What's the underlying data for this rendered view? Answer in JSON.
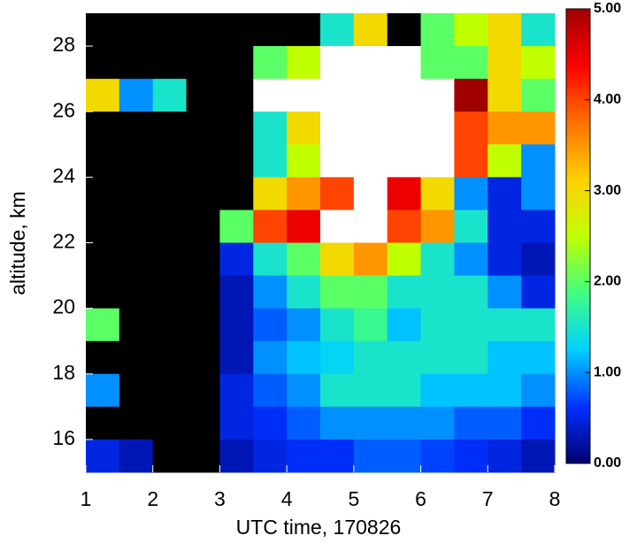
{
  "chart_data": {
    "type": "heatmap",
    "x_label": "UTC time, 170826",
    "y_label": "altitude, km",
    "xlim": [
      1,
      8
    ],
    "ylim": [
      15,
      29
    ],
    "xticks": [
      1,
      2,
      3,
      4,
      5,
      6,
      7,
      8
    ],
    "yticks": [
      16,
      18,
      20,
      22,
      24,
      26,
      28
    ],
    "x": [
      1.25,
      1.75,
      2.25,
      2.75,
      3.25,
      3.75,
      4.25,
      4.75,
      5.25,
      5.75,
      6.25,
      6.75,
      7.25,
      7.75
    ],
    "y": [
      28.5,
      27.5,
      26.5,
      25.5,
      24.5,
      23.5,
      22.5,
      21.5,
      20.5,
      19.5,
      18.5,
      17.5,
      16.5,
      15.5
    ],
    "z": [
      [
        null,
        null,
        null,
        null,
        null,
        null,
        null,
        1.5,
        3,
        null,
        2,
        2.5,
        3,
        1.5
      ],
      [
        null,
        null,
        null,
        null,
        null,
        2,
        2.5,
        6,
        6,
        6,
        2,
        2,
        3,
        2.5
      ],
      [
        3,
        1,
        1.5,
        null,
        null,
        6,
        6,
        6,
        6,
        6,
        6,
        5,
        3,
        2
      ],
      [
        null,
        null,
        null,
        null,
        null,
        1.5,
        3,
        6,
        6,
        6,
        6,
        4,
        3.5,
        3.5
      ],
      [
        null,
        null,
        null,
        null,
        null,
        1.5,
        2.5,
        6,
        6,
        6,
        6,
        4,
        2.5,
        1
      ],
      [
        null,
        null,
        null,
        null,
        null,
        3,
        3.5,
        4,
        6,
        4.5,
        3,
        1,
        0.5,
        1
      ],
      [
        null,
        null,
        null,
        null,
        2,
        4,
        4.5,
        6,
        6,
        4,
        3.5,
        1.5,
        0.5,
        0.5
      ],
      [
        null,
        null,
        null,
        null,
        0.5,
        1.5,
        2,
        3,
        3.5,
        2.5,
        1.5,
        1,
        0.5,
        0.3
      ],
      [
        null,
        null,
        null,
        null,
        0.3,
        1,
        1.5,
        2,
        2,
        1.5,
        1.5,
        1.5,
        1,
        0.5
      ],
      [
        2,
        null,
        null,
        null,
        0.3,
        0.8,
        1,
        1.5,
        1.8,
        1.2,
        1.5,
        1.5,
        1.5,
        1.5
      ],
      [
        null,
        null,
        null,
        null,
        0.3,
        1,
        1.2,
        1.3,
        1.5,
        1.5,
        1.5,
        1.5,
        1.2,
        1.2
      ],
      [
        1,
        null,
        null,
        null,
        0.5,
        0.8,
        1,
        1.5,
        1.5,
        1.5,
        1.2,
        1.2,
        1.2,
        1
      ],
      [
        null,
        null,
        null,
        null,
        0.5,
        0.6,
        0.8,
        1,
        1,
        1,
        1,
        0.8,
        0.8,
        0.6
      ],
      [
        0.5,
        0.3,
        null,
        null,
        0.3,
        0.5,
        0.6,
        0.6,
        0.8,
        0.8,
        0.7,
        0.6,
        0.5,
        0.3
      ]
    ],
    "clim": [
      0,
      5
    ],
    "cticks": [
      {
        "value": 0,
        "label": "0.00"
      },
      {
        "value": 1,
        "label": "1.00"
      },
      {
        "value": 2,
        "label": "2.00"
      },
      {
        "value": 3,
        "label": "3.00"
      },
      {
        "value": 4,
        "label": "4.00"
      },
      {
        "value": 5,
        "label": "5.00"
      }
    ],
    "colormap": [
      "#000070",
      "#0030ff",
      "#00d0ff",
      "#40ff80",
      "#c0ff00",
      "#ffd000",
      "#ff7000",
      "#ff0000",
      "#a00000"
    ],
    "nodata_color": "#000000",
    "over_color": "#ffffff"
  }
}
